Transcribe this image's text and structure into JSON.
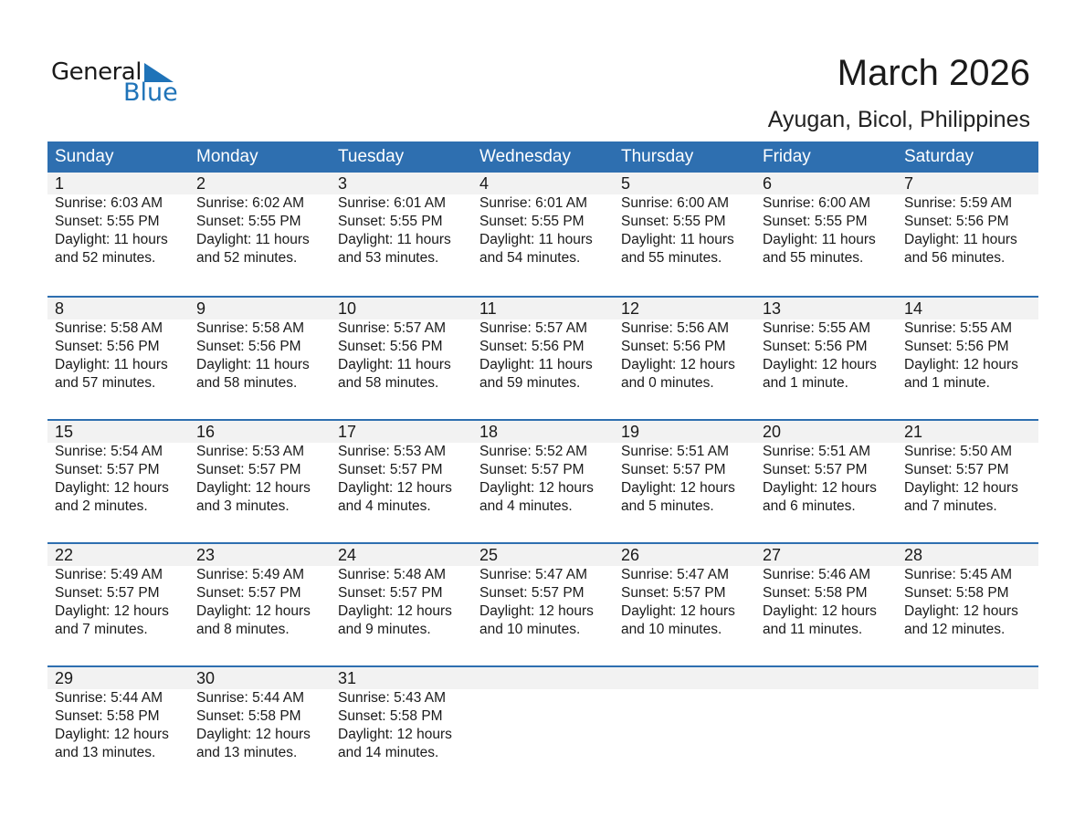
{
  "logo": {
    "word1": "General",
    "word2": "Blue"
  },
  "title": "March 2026",
  "location": "Ayugan, Bicol, Philippines",
  "colors": {
    "header": "#2e6fb0",
    "logo_blue": "#1f73b8",
    "day_band": "#f2f2f2"
  },
  "weekdays": [
    "Sunday",
    "Monday",
    "Tuesday",
    "Wednesday",
    "Thursday",
    "Friday",
    "Saturday"
  ],
  "days": [
    {
      "d": "1",
      "lines": [
        "Sunrise: 6:03 AM",
        "Sunset: 5:55 PM",
        "Daylight: 11 hours",
        "and 52 minutes."
      ]
    },
    {
      "d": "2",
      "lines": [
        "Sunrise: 6:02 AM",
        "Sunset: 5:55 PM",
        "Daylight: 11 hours",
        "and 52 minutes."
      ]
    },
    {
      "d": "3",
      "lines": [
        "Sunrise: 6:01 AM",
        "Sunset: 5:55 PM",
        "Daylight: 11 hours",
        "and 53 minutes."
      ]
    },
    {
      "d": "4",
      "lines": [
        "Sunrise: 6:01 AM",
        "Sunset: 5:55 PM",
        "Daylight: 11 hours",
        "and 54 minutes."
      ]
    },
    {
      "d": "5",
      "lines": [
        "Sunrise: 6:00 AM",
        "Sunset: 5:55 PM",
        "Daylight: 11 hours",
        "and 55 minutes."
      ]
    },
    {
      "d": "6",
      "lines": [
        "Sunrise: 6:00 AM",
        "Sunset: 5:55 PM",
        "Daylight: 11 hours",
        "and 55 minutes."
      ]
    },
    {
      "d": "7",
      "lines": [
        "Sunrise: 5:59 AM",
        "Sunset: 5:56 PM",
        "Daylight: 11 hours",
        "and 56 minutes."
      ]
    },
    {
      "d": "8",
      "lines": [
        "Sunrise: 5:58 AM",
        "Sunset: 5:56 PM",
        "Daylight: 11 hours",
        "and 57 minutes."
      ]
    },
    {
      "d": "9",
      "lines": [
        "Sunrise: 5:58 AM",
        "Sunset: 5:56 PM",
        "Daylight: 11 hours",
        "and 58 minutes."
      ]
    },
    {
      "d": "10",
      "lines": [
        "Sunrise: 5:57 AM",
        "Sunset: 5:56 PM",
        "Daylight: 11 hours",
        "and 58 minutes."
      ]
    },
    {
      "d": "11",
      "lines": [
        "Sunrise: 5:57 AM",
        "Sunset: 5:56 PM",
        "Daylight: 11 hours",
        "and 59 minutes."
      ]
    },
    {
      "d": "12",
      "lines": [
        "Sunrise: 5:56 AM",
        "Sunset: 5:56 PM",
        "Daylight: 12 hours",
        "and 0 minutes."
      ]
    },
    {
      "d": "13",
      "lines": [
        "Sunrise: 5:55 AM",
        "Sunset: 5:56 PM",
        "Daylight: 12 hours",
        "and 1 minute."
      ]
    },
    {
      "d": "14",
      "lines": [
        "Sunrise: 5:55 AM",
        "Sunset: 5:56 PM",
        "Daylight: 12 hours",
        "and 1 minute."
      ]
    },
    {
      "d": "15",
      "lines": [
        "Sunrise: 5:54 AM",
        "Sunset: 5:57 PM",
        "Daylight: 12 hours",
        "and 2 minutes."
      ]
    },
    {
      "d": "16",
      "lines": [
        "Sunrise: 5:53 AM",
        "Sunset: 5:57 PM",
        "Daylight: 12 hours",
        "and 3 minutes."
      ]
    },
    {
      "d": "17",
      "lines": [
        "Sunrise: 5:53 AM",
        "Sunset: 5:57 PM",
        "Daylight: 12 hours",
        "and 4 minutes."
      ]
    },
    {
      "d": "18",
      "lines": [
        "Sunrise: 5:52 AM",
        "Sunset: 5:57 PM",
        "Daylight: 12 hours",
        "and 4 minutes."
      ]
    },
    {
      "d": "19",
      "lines": [
        "Sunrise: 5:51 AM",
        "Sunset: 5:57 PM",
        "Daylight: 12 hours",
        "and 5 minutes."
      ]
    },
    {
      "d": "20",
      "lines": [
        "Sunrise: 5:51 AM",
        "Sunset: 5:57 PM",
        "Daylight: 12 hours",
        "and 6 minutes."
      ]
    },
    {
      "d": "21",
      "lines": [
        "Sunrise: 5:50 AM",
        "Sunset: 5:57 PM",
        "Daylight: 12 hours",
        "and 7 minutes."
      ]
    },
    {
      "d": "22",
      "lines": [
        "Sunrise: 5:49 AM",
        "Sunset: 5:57 PM",
        "Daylight: 12 hours",
        "and 7 minutes."
      ]
    },
    {
      "d": "23",
      "lines": [
        "Sunrise: 5:49 AM",
        "Sunset: 5:57 PM",
        "Daylight: 12 hours",
        "and 8 minutes."
      ]
    },
    {
      "d": "24",
      "lines": [
        "Sunrise: 5:48 AM",
        "Sunset: 5:57 PM",
        "Daylight: 12 hours",
        "and 9 minutes."
      ]
    },
    {
      "d": "25",
      "lines": [
        "Sunrise: 5:47 AM",
        "Sunset: 5:57 PM",
        "Daylight: 12 hours",
        "and 10 minutes."
      ]
    },
    {
      "d": "26",
      "lines": [
        "Sunrise: 5:47 AM",
        "Sunset: 5:57 PM",
        "Daylight: 12 hours",
        "and 10 minutes."
      ]
    },
    {
      "d": "27",
      "lines": [
        "Sunrise: 5:46 AM",
        "Sunset: 5:58 PM",
        "Daylight: 12 hours",
        "and 11 minutes."
      ]
    },
    {
      "d": "28",
      "lines": [
        "Sunrise: 5:45 AM",
        "Sunset: 5:58 PM",
        "Daylight: 12 hours",
        "and 12 minutes."
      ]
    },
    {
      "d": "29",
      "lines": [
        "Sunrise: 5:44 AM",
        "Sunset: 5:58 PM",
        "Daylight: 12 hours",
        "and 13 minutes."
      ]
    },
    {
      "d": "30",
      "lines": [
        "Sunrise: 5:44 AM",
        "Sunset: 5:58 PM",
        "Daylight: 12 hours",
        "and 13 minutes."
      ]
    },
    {
      "d": "31",
      "lines": [
        "Sunrise: 5:43 AM",
        "Sunset: 5:58 PM",
        "Daylight: 12 hours",
        "and 14 minutes."
      ]
    }
  ]
}
